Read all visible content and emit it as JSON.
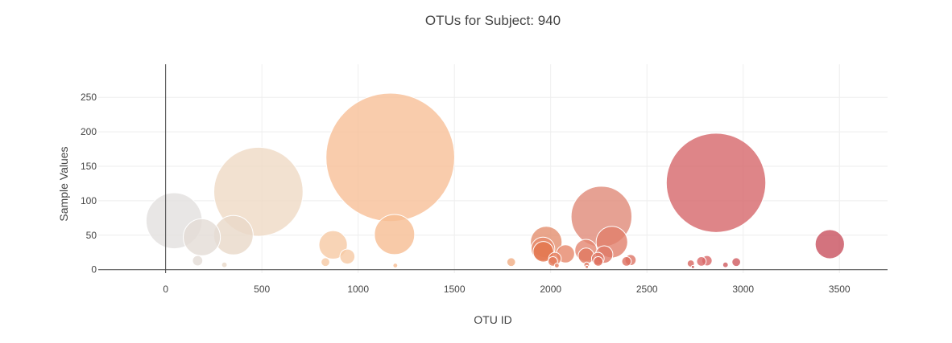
{
  "chart_data": {
    "type": "scatter",
    "subtype": "bubble",
    "title": "OTUs for Subject: 940",
    "xlabel": "OTU ID",
    "ylabel": "Sample Values",
    "xlim": [
      -350,
      3750
    ],
    "ylim": [
      -5,
      298
    ],
    "x_ticks": [
      0,
      500,
      1000,
      1500,
      2000,
      2500,
      3000,
      3500
    ],
    "y_ticks": [
      0,
      50,
      100,
      150,
      200,
      250
    ],
    "grid": true,
    "legend": "none",
    "colorscale": "Earth-like (light gray to tan to orange to red)",
    "series": [
      {
        "points": [
          {
            "x": 44,
            "y": 71,
            "size": 71,
            "color": "#e2e0de"
          },
          {
            "x": 188,
            "y": 47,
            "size": 47,
            "color": "#e3dcd6"
          },
          {
            "x": 166,
            "y": 13,
            "size": 13,
            "color": "#e3dcd6"
          },
          {
            "x": 305,
            "y": 7,
            "size": 7,
            "color": "#e8d8c8"
          },
          {
            "x": 352,
            "y": 50,
            "size": 50,
            "color": "#e8d8c8"
          },
          {
            "x": 482,
            "y": 113,
            "size": 113,
            "color": "#efd9c4"
          },
          {
            "x": 830,
            "y": 11,
            "size": 11,
            "color": "#f6c9a4"
          },
          {
            "x": 870,
            "y": 36,
            "size": 36,
            "color": "#f6c9a4"
          },
          {
            "x": 944,
            "y": 19,
            "size": 19,
            "color": "#f6c9a4"
          },
          {
            "x": 1167,
            "y": 163,
            "size": 163,
            "color": "#f8bf97"
          },
          {
            "x": 1189,
            "y": 51,
            "size": 51,
            "color": "#f6bd92"
          },
          {
            "x": 1193,
            "y": 6,
            "size": 6,
            "color": "#f6bd92"
          },
          {
            "x": 1795,
            "y": 11,
            "size": 11,
            "color": "#f0ad83"
          },
          {
            "x": 1977,
            "y": 40,
            "size": 40,
            "color": "#e38e6e"
          },
          {
            "x": 1960,
            "y": 30,
            "size": 30,
            "color": "#e6896a"
          },
          {
            "x": 1962,
            "y": 26,
            "size": 26,
            "color": "#e4764e"
          },
          {
            "x": 2011,
            "y": 12,
            "size": 12,
            "color": "#e3795a"
          },
          {
            "x": 2022,
            "y": 16,
            "size": 16,
            "color": "#e5805f"
          },
          {
            "x": 2032,
            "y": 6,
            "size": 6,
            "color": "#e3795a"
          },
          {
            "x": 2077,
            "y": 23,
            "size": 23,
            "color": "#e6876a"
          },
          {
            "x": 2183,
            "y": 28,
            "size": 28,
            "color": "#e38670"
          },
          {
            "x": 2184,
            "y": 20,
            "size": 20,
            "color": "#e07860"
          },
          {
            "x": 2187,
            "y": 7,
            "size": 7,
            "color": "#e07860"
          },
          {
            "x": 2188,
            "y": 4,
            "size": 4,
            "color": "#e07860"
          },
          {
            "x": 2245,
            "y": 16,
            "size": 16,
            "color": "#de7866"
          },
          {
            "x": 2247,
            "y": 12,
            "size": 12,
            "color": "#de6f5d"
          },
          {
            "x": 2264,
            "y": 77,
            "size": 77,
            "color": "#e08a78"
          },
          {
            "x": 2278,
            "y": 22,
            "size": 22,
            "color": "#de7866"
          },
          {
            "x": 2318,
            "y": 40,
            "size": 40,
            "color": "#e1806c"
          },
          {
            "x": 2394,
            "y": 12,
            "size": 12,
            "color": "#dd6e5f"
          },
          {
            "x": 2415,
            "y": 14,
            "size": 14,
            "color": "#dd7465"
          },
          {
            "x": 2728,
            "y": 9,
            "size": 9,
            "color": "#d86660"
          },
          {
            "x": 2739,
            "y": 4,
            "size": 4,
            "color": "#c84b4b"
          },
          {
            "x": 2783,
            "y": 12,
            "size": 12,
            "color": "#d96868"
          },
          {
            "x": 2812,
            "y": 13,
            "size": 13,
            "color": "#d96868"
          },
          {
            "x": 2859,
            "y": 126,
            "size": 126,
            "color": "#d6666a"
          },
          {
            "x": 2908,
            "y": 7,
            "size": 7,
            "color": "#d05a5f"
          },
          {
            "x": 2964,
            "y": 11,
            "size": 11,
            "color": "#d05a5f"
          },
          {
            "x": 3450,
            "y": 37,
            "size": 37,
            "color": "#c8505e"
          }
        ]
      }
    ]
  }
}
